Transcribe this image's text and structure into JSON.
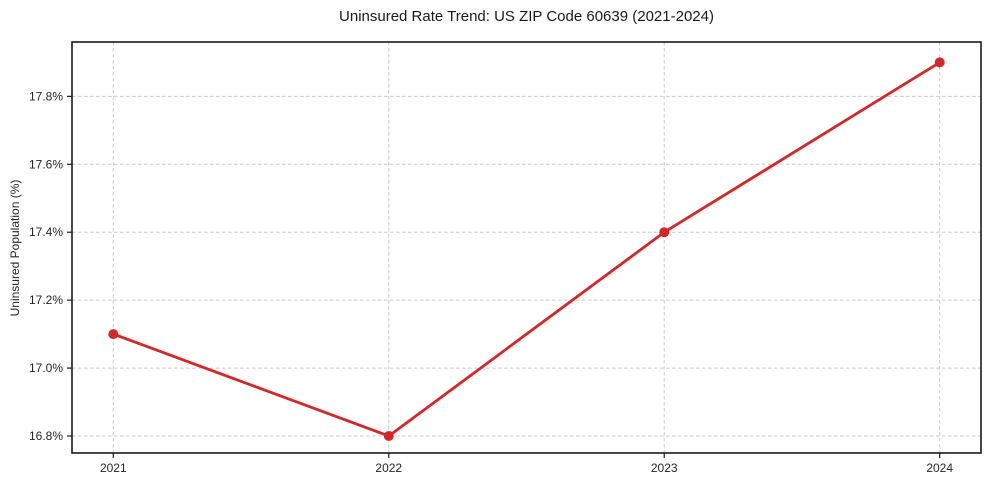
{
  "chart_data": {
    "type": "line",
    "title": "Uninsured Rate Trend: US ZIP Code 60639 (2021-2024)",
    "xlabel": "",
    "ylabel": "Uninsured Population (%)",
    "x": [
      2021,
      2022,
      2023,
      2024
    ],
    "values": [
      17.1,
      16.8,
      17.4,
      17.9
    ],
    "xticks": {
      "values": [
        2021,
        2022,
        2023,
        2024
      ],
      "labels": [
        "2021",
        "2022",
        "2023",
        "2024"
      ]
    },
    "yticks": {
      "values": [
        16.8,
        17.0,
        17.2,
        17.4,
        17.6,
        17.8
      ],
      "labels": [
        "16.8%",
        "17.0%",
        "17.2%",
        "17.4%",
        "17.6%",
        "17.8%"
      ]
    },
    "xlim": [
      2020.85,
      2024.15
    ],
    "ylim": [
      16.75,
      17.96
    ],
    "grid": true,
    "grid_style": "dashed",
    "legend": false,
    "line_color": "#d62728",
    "marker_color": "#d62728",
    "grid_color": "#c9c9c9",
    "axis_color": "#1a1a1a",
    "tick_color": "#1a1a1a",
    "tick_label_color": "#262626",
    "background_color": "#ffffff"
  }
}
